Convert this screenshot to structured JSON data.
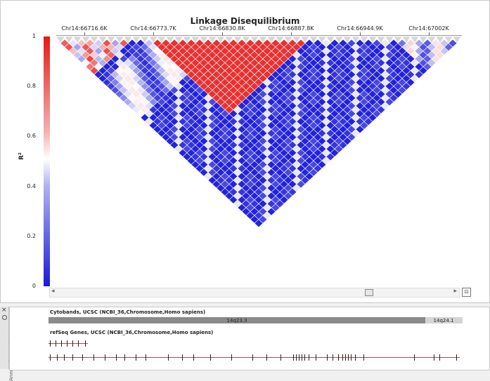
{
  "chart_data": {
    "type": "heatmap",
    "title": "Linkage Disequilibrium",
    "ylabel": "R²",
    "colorbar_range": [
      0,
      1
    ],
    "colorbar_ticks": [
      "1",
      "0.8",
      "0.6",
      "0.4",
      "0.2",
      "0"
    ],
    "colorscale": {
      "low": "#1a1ad8",
      "mid": "#ffffff",
      "high": "#e51a1a"
    },
    "position_labels": [
      "Chr14:66716.6K",
      "Chr14:66773.7K",
      "Chr14:66830.8K",
      "Chr14:66887.8K",
      "Chr14:66944.9K",
      "Chr14:67002K"
    ]
  },
  "annotation_panel": {
    "side_label": "Annotation Tracks",
    "close_glyph": "×",
    "tracks": [
      {
        "title": "Cytobands, UCSC (NCBI_36,Chromosome,Homo sapiens)",
        "bands": [
          "14q23.3",
          "14q24.1"
        ]
      },
      {
        "title": "refSeq Genes, UCSC (NCBI_36,Chromosome,Homo sapiens)"
      }
    ]
  },
  "scrollbar": {
    "left_arrow": "◂",
    "right_arrow": "▸",
    "fit_glyph": "⊡"
  }
}
